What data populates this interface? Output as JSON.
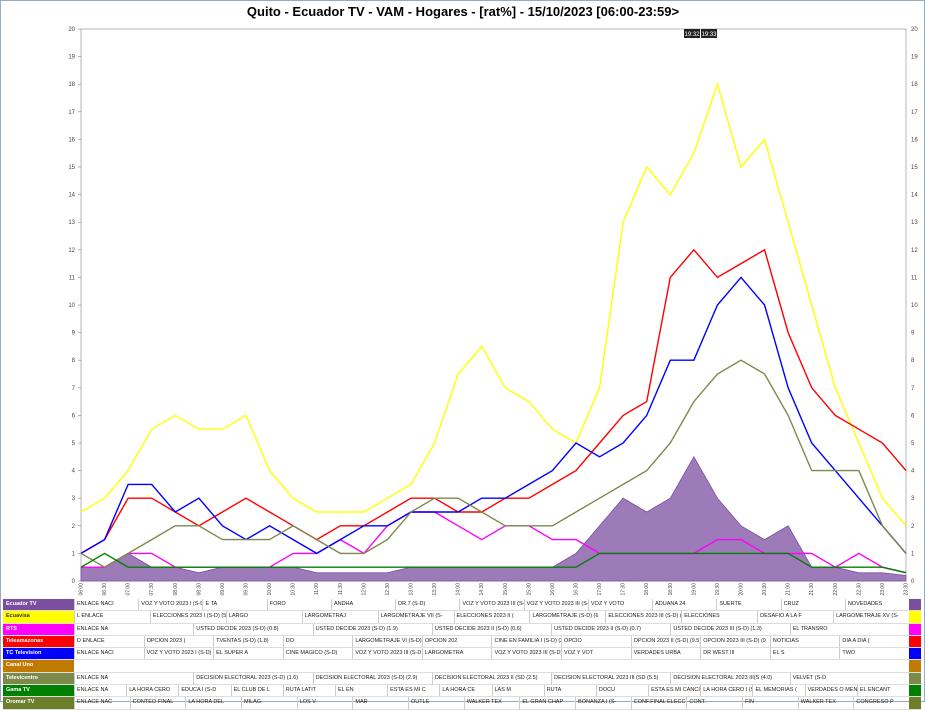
{
  "chart_data": {
    "type": "line",
    "title": "Quito - Ecuador TV - VAM - Hogares - [rat%] - 15/10/2023 [06:00-23:59>",
    "annotations": [
      "19:32",
      "19:33"
    ],
    "categories": [
      "06:00",
      "06:30",
      "07:00",
      "07:30",
      "08:00",
      "08:30",
      "09:00",
      "09:30",
      "10:00",
      "10:30",
      "11:00",
      "11:30",
      "12:00",
      "12:30",
      "13:00",
      "13:30",
      "14:00",
      "14:30",
      "15:00",
      "15:30",
      "16:00",
      "16:30",
      "17:00",
      "17:30",
      "18:00",
      "18:30",
      "19:00",
      "19:30",
      "20:00",
      "20:30",
      "21:00",
      "21:30",
      "22:00",
      "22:30",
      "23:00",
      "23:30"
    ],
    "ylim": [
      0,
      20
    ],
    "yticks": [
      0,
      1,
      2,
      3,
      4,
      5,
      6,
      7,
      8,
      9,
      10,
      11,
      12,
      13,
      14,
      15,
      16,
      17,
      18,
      19,
      20
    ],
    "grid": false,
    "series": [
      {
        "name": "Ecuador TV",
        "color": "#7b4fa0",
        "style": "area",
        "values": [
          0.5,
          0.5,
          1,
          0.5,
          0.5,
          0.3,
          0.5,
          0.5,
          0.5,
          0.5,
          0.3,
          0.3,
          0.3,
          0.3,
          0.5,
          0.5,
          0.5,
          0.5,
          0.5,
          0.5,
          0.5,
          1,
          2,
          3,
          2.5,
          3,
          4.5,
          3,
          2,
          1.5,
          2,
          0.5,
          0.5,
          0.3,
          0.3,
          0.2
        ],
        "programs": [
          "ENLACE NACI",
          "VOZ Y VOTO 2023 I (S-D) (0.6)",
          "E TA",
          "FORO",
          "ANDHA",
          "DR.7 (S-D)",
          "VOZ Y VOTO 2023 III (S-D",
          "VOZ Y VOTO 2023 III (S-D) (2.3)",
          "VOZ Y VOTO",
          "ADUANA 24",
          "SUERTE",
          "CRUZ",
          "NOVEDADES"
        ]
      },
      {
        "name": "Ecuavisa",
        "color": "#ffff00",
        "values": [
          2.5,
          3,
          4,
          5.5,
          6,
          5.5,
          5.5,
          6,
          4,
          3,
          2.5,
          2.5,
          2.5,
          3,
          3.5,
          5,
          7.5,
          8.5,
          7,
          6.5,
          5.5,
          5,
          7,
          13,
          15,
          14,
          15.5,
          18,
          15,
          16,
          13,
          10,
          7,
          5,
          3,
          2
        ],
        "programs": [
          "L ENLACE",
          "ELECCIONES 2023 I (S-D) (5.0)",
          "LARGO",
          "LARGOMETRAJ",
          "LARGOMETRAJE VII (S-",
          "ELECCIONES 2023 II (",
          "LARGOMETRAJE (S-D) (6",
          "ELECCIONES 2023 III (S-D) (14.3)",
          "ELECCIONES",
          "DESAFIO A LA F",
          "LARGOMETRAJE XV (S-"
        ]
      },
      {
        "name": "RTS",
        "color": "#ff00ff",
        "values": [
          0.5,
          0.5,
          1,
          1,
          0.5,
          0.5,
          0.5,
          0.5,
          0.5,
          1,
          1,
          1.5,
          1,
          2,
          2.5,
          2.5,
          2,
          1.5,
          2,
          2,
          1.5,
          1.5,
          1,
          1,
          1,
          1,
          1,
          1.5,
          1.5,
          1,
          1,
          1,
          0.5,
          1,
          0.5,
          0.3
        ],
        "programs": [
          "ENLACE NA",
          "USTED DECIDE 2023 (S-D) (0.8)",
          "USTED DECIDE 2023 (S-D) (1.9)",
          "USTED DECIDE 2023 II (S-D) (0.6)",
          "USTED DECIDE 2023 II (S-D) (0.7)",
          "USTED DECIDE 2023 III (S-D) (1.3)",
          "EL TRANSRO"
        ]
      },
      {
        "name": "Teleamazonas",
        "color": "#ff0000",
        "values": [
          1,
          1.5,
          3,
          3,
          2.5,
          2,
          2.5,
          3,
          2.5,
          2,
          1.5,
          2,
          2,
          2.5,
          3,
          3,
          2.5,
          2.5,
          3,
          3,
          3.5,
          4,
          5,
          6,
          6.5,
          11,
          12,
          11,
          11.5,
          12,
          9,
          7,
          6,
          5.5,
          5,
          4
        ],
        "programs": [
          "D ENLACE",
          "OPCION 2023 (",
          "TVENTAS (S-D) (1.8)",
          "DO",
          "LARGOMETRAJE VI (S-D) (2.4)",
          "OPCION 202",
          "CINE EN FAMILIA I (S-D) (2.2)",
          "OPCIO",
          "OPCION 2023 II (S-D) (9.5)",
          "OPCION 2023 III (S-D) (9",
          "NOTICIAS",
          "DIA A DIA ("
        ]
      },
      {
        "name": "TC Television",
        "color": "#0000ff",
        "values": [
          1,
          1.5,
          3.5,
          3.5,
          2.5,
          3,
          2,
          1.5,
          2,
          1.5,
          1,
          1.5,
          2,
          2,
          2.5,
          2.5,
          2.5,
          3,
          3,
          3.5,
          4,
          5,
          4.5,
          5,
          6,
          8,
          8,
          10,
          11,
          10,
          7,
          5,
          4,
          3,
          2,
          1
        ],
        "programs": [
          "ENLACE NACI",
          "VOZ Y VOTO 2023 I (S-D) (2.3)",
          "EL SUPER A",
          "CINE MAGICO (S-D)",
          "VOZ Y VOTO 2023 III (S-D",
          "LARGOMETRA",
          "VOZ Y VOTO 2023 III (S-D) (6.9)",
          "VOZ Y VOT",
          "VERDADES URBA",
          "DR WEST III",
          "EL S",
          "TWO"
        ]
      },
      {
        "name": "Canal Uno",
        "color": "#c07a00",
        "programs": []
      },
      {
        "name": "Televicentro",
        "color": "#7b8a4a",
        "values": [
          1,
          0.5,
          1,
          1.5,
          2,
          2,
          1.5,
          1.5,
          1.5,
          2,
          1.5,
          1,
          1,
          1.5,
          2.5,
          3,
          3,
          2.5,
          2,
          2,
          2,
          2.5,
          3,
          3.5,
          4,
          5,
          6.5,
          7.5,
          8,
          7.5,
          6,
          4,
          4,
          4,
          2,
          1
        ],
        "programs": [
          "ENLACE NA",
          "DECISION ELECTORAL 2023 (S-D) (1.6)",
          "DECISION ELECTORAL 2023 (S-D) (2.9)",
          "DECISION ELECTORAL 2023 II (SD (2.5)",
          "DECISION ELECTORAL 2023 III (SD (5.5)",
          "DECISION ELECTORAL 2023 III(S (4.0)",
          "VELVET (S-D"
        ]
      },
      {
        "name": "Gama TV",
        "color": "#008000",
        "values": [
          0.5,
          1,
          0.5,
          0.5,
          0.5,
          0.5,
          0.5,
          0.5,
          0.5,
          0.5,
          0.5,
          0.5,
          0.5,
          0.5,
          0.5,
          0.5,
          0.5,
          0.5,
          0.5,
          0.5,
          0.5,
          0.5,
          1,
          1,
          1,
          1,
          1,
          1,
          1,
          1,
          1,
          0.5,
          0.5,
          0.5,
          0.5,
          0.3
        ],
        "programs": [
          "ENLACE NA",
          "LA HORA CERO",
          "EDUCA I (S-D",
          "EL CLUB DE L",
          "RUTA LATIT",
          "EL EN",
          "ESTA ES MI C",
          "LA HORA CE",
          "LAS M",
          "RUTA",
          "DOCU",
          "ESTA ES MI CANCIO",
          "LA HORA CERO I (S-D) (0.7)",
          "EL MEMORIAS (",
          "VERDADES O MENTIRAS (S",
          "EL ENCANT"
        ]
      },
      {
        "name": "Oromar TV",
        "color": "#6b7f2a",
        "programs": [
          "ENLACE NAC",
          "CONTEO FINAL",
          "LA HORA DEL",
          "MILAG",
          "LOS V",
          "MAR",
          "OUTLE",
          "WALKER TEX",
          "EL GRAN CHAP",
          "BONANZA I (S-",
          "CONF.FINAL ELECCIONES 2023 I (D (0.6)",
          "CONT.",
          "FIN",
          "WALKER TEX",
          "CONGRESO P"
        ]
      }
    ]
  }
}
